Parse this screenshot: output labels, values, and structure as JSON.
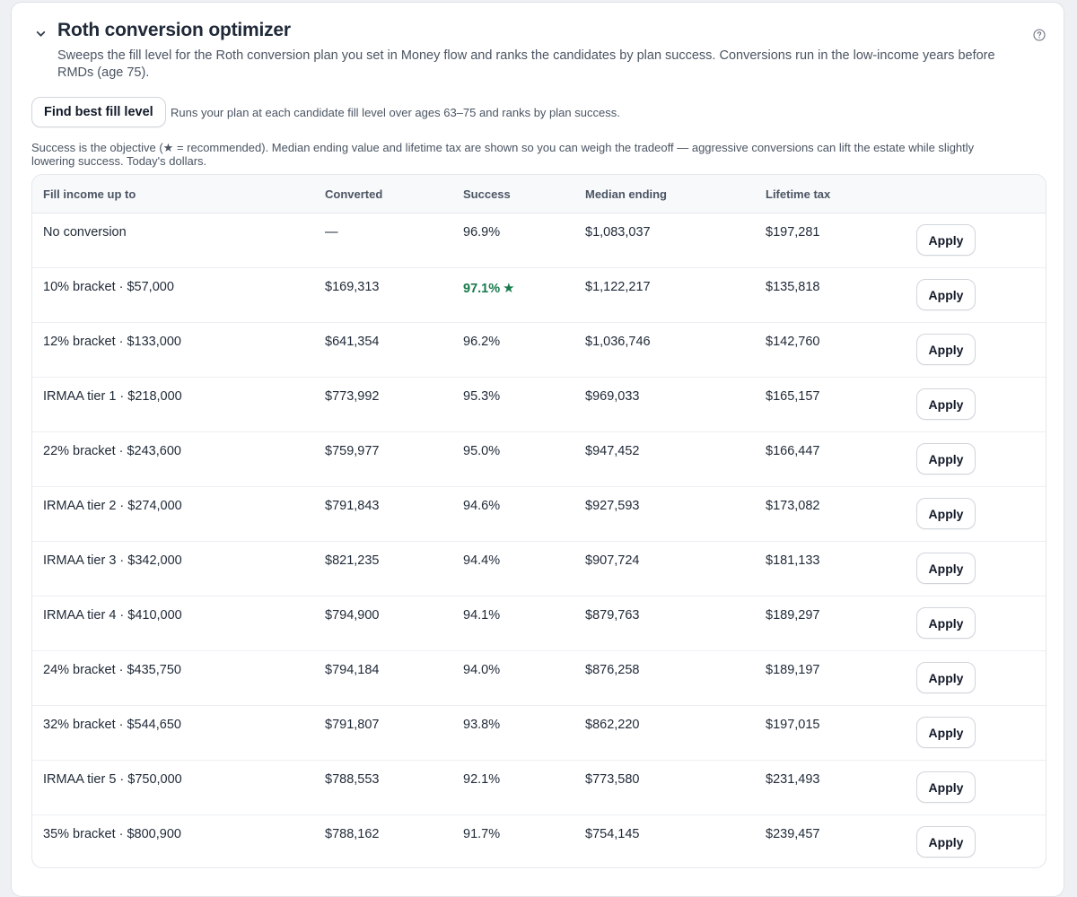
{
  "panel": {
    "title": "Roth conversion optimizer",
    "description": "Sweeps the fill level for the Roth conversion plan you set in Money flow and ranks the candidates by plan success. Conversions run in the low-income years before RMDs (age 75).",
    "collapse_icon": "chevron-down-icon",
    "help_icon": "help-circle-icon"
  },
  "action": {
    "find_label": "Find best fill level",
    "find_hint": "Runs your plan at each candidate fill level over ages 63–75 and ranks by plan success."
  },
  "note": "Success is the objective (★ = recommended). Median ending value and lifetime tax are shown so you can weigh the tradeoff — aggressive conversions can lift the estate while slightly lowering success. Today's dollars.",
  "table": {
    "headers": {
      "fill": "Fill income up to",
      "converted": "Converted",
      "success": "Success",
      "median": "Median ending",
      "tax": "Lifetime tax"
    },
    "recommended_marker": "★",
    "apply_label": "Apply",
    "rows": [
      {
        "fill": "No conversion",
        "converted": "—",
        "success": "96.9%",
        "median": "$1,083,037",
        "tax": "$197,281"
      },
      {
        "fill": "10% bracket · $57,000",
        "converted": "$169,313",
        "success": "97.1%",
        "median": "$1,122,217",
        "tax": "$135,818",
        "recommended": true
      },
      {
        "fill": "12% bracket · $133,000",
        "converted": "$641,354",
        "success": "96.2%",
        "median": "$1,036,746",
        "tax": "$142,760"
      },
      {
        "fill": "IRMAA tier 1 · $218,000",
        "converted": "$773,992",
        "success": "95.3%",
        "median": "$969,033",
        "tax": "$165,157"
      },
      {
        "fill": "22% bracket · $243,600",
        "converted": "$759,977",
        "success": "95.0%",
        "median": "$947,452",
        "tax": "$166,447"
      },
      {
        "fill": "IRMAA tier 2 · $274,000",
        "converted": "$791,843",
        "success": "94.6%",
        "median": "$927,593",
        "tax": "$173,082"
      },
      {
        "fill": "IRMAA tier 3 · $342,000",
        "converted": "$821,235",
        "success": "94.4%",
        "median": "$907,724",
        "tax": "$181,133"
      },
      {
        "fill": "IRMAA tier 4 · $410,000",
        "converted": "$794,900",
        "success": "94.1%",
        "median": "$879,763",
        "tax": "$189,297"
      },
      {
        "fill": "24% bracket · $435,750",
        "converted": "$794,184",
        "success": "94.0%",
        "median": "$876,258",
        "tax": "$189,197"
      },
      {
        "fill": "32% bracket · $544,650",
        "converted": "$791,807",
        "success": "93.8%",
        "median": "$862,220",
        "tax": "$197,015"
      },
      {
        "fill": "IRMAA tier 5 · $750,000",
        "converted": "$788,553",
        "success": "92.1%",
        "median": "$773,580",
        "tax": "$231,493"
      },
      {
        "fill": "35% bracket · $800,900",
        "converted": "$788,162",
        "success": "91.7%",
        "median": "$754,145",
        "tax": "$239,457"
      }
    ]
  },
  "colors": {
    "recommended": "#177a4d",
    "text": "#1f2937",
    "muted": "#4b5563"
  }
}
